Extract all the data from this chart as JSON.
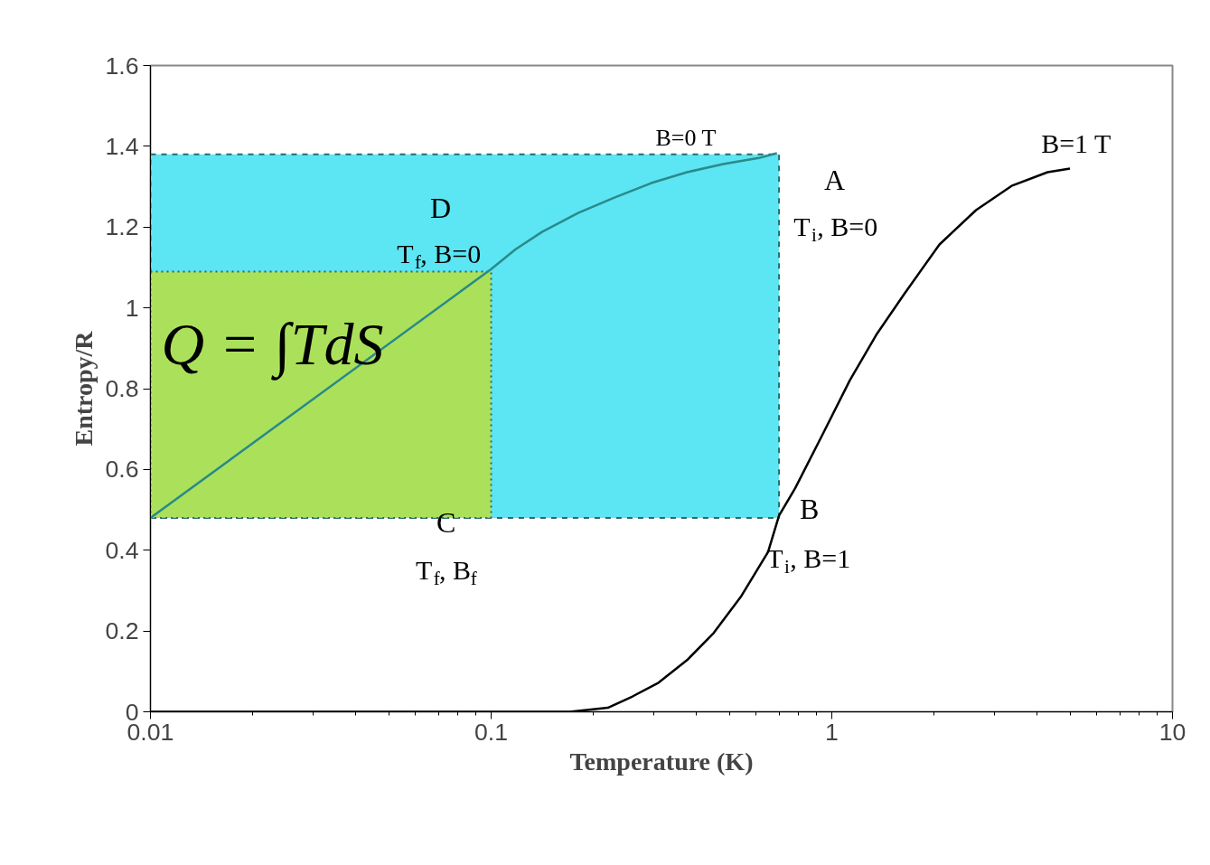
{
  "chart_data": {
    "type": "line",
    "xlabel": "Temperature (K)",
    "ylabel": "Entropy/R",
    "log": "x",
    "xlim": [
      0.01,
      10
    ],
    "ylim": [
      0,
      1.6
    ],
    "xticks": [
      0.01,
      0.1,
      1,
      10
    ],
    "yticks": [
      0,
      0.2,
      0.4,
      0.6,
      0.8,
      1,
      1.2,
      1.4,
      1.6
    ],
    "series": [
      {
        "type": "area",
        "color": "#40e0f0",
        "x": [
          0.01,
          0.7,
          0.7,
          0.01
        ],
        "values": [
          1.38,
          1.38,
          0.48,
          0.48
        ],
        "line_style": "dashed"
      },
      {
        "type": "area",
        "color": "#b8e040",
        "x": [
          0.01,
          0.1,
          0.1,
          0.01
        ],
        "values": [
          1.09,
          1.09,
          0.48,
          0.48
        ],
        "line_style": "dotted"
      },
      {
        "color": "#2a8a8a",
        "x": [
          0.01,
          0.1,
          0.118,
          0.141,
          0.18,
          0.23,
          0.295,
          0.376,
          0.48,
          0.61,
          0.69
        ],
        "values": [
          0.48,
          1.096,
          1.145,
          1.188,
          1.235,
          1.273,
          1.309,
          1.336,
          1.356,
          1.371,
          1.383
        ]
      },
      {
        "color": "#000000",
        "x": [
          0.01,
          0.17,
          0.22,
          0.26,
          0.31,
          0.376,
          0.45,
          0.54,
          0.65,
          0.7,
          0.78,
          0.94,
          1.13,
          1.35,
          1.63,
          2.07,
          2.65,
          3.37,
          4.3,
          5.0
        ],
        "values": [
          0,
          0,
          0.01,
          0.038,
          0.072,
          0.128,
          0.195,
          0.284,
          0.396,
          0.486,
          0.553,
          0.687,
          0.821,
          0.933,
          1.034,
          1.157,
          1.242,
          1.302,
          1.336,
          1.345
        ]
      }
    ],
    "annotations": [
      "B=0 T",
      "B=1 T",
      "A",
      "T$_{i}$, B=0",
      "B",
      "T$_{i}$, B=1",
      "C",
      "T$_{f}$, B$_{f}$",
      "D",
      "T$_{f}$, B=0",
      "Q = ∫TdS"
    ]
  }
}
